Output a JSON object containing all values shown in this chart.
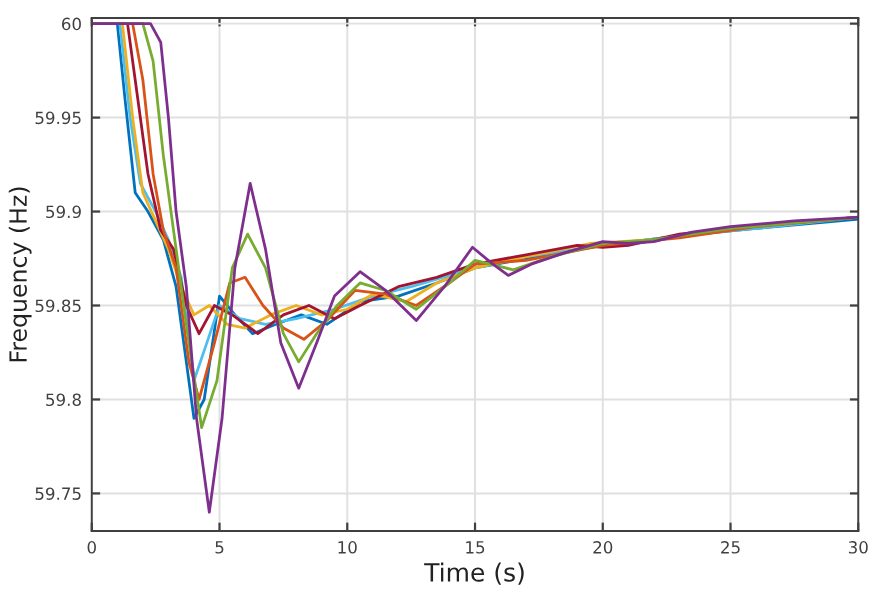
{
  "chart_data": {
    "type": "line",
    "xlabel": "Time (s)",
    "ylabel": "Frequency (Hz)",
    "xlim": [
      0,
      30
    ],
    "ylim": [
      59.73,
      60.003
    ],
    "xticks": [
      0,
      5,
      10,
      15,
      20,
      25,
      30
    ],
    "yticks": [
      59.75,
      59.8,
      59.85,
      59.9,
      59.95,
      60
    ],
    "grid": true,
    "line_style": "solid",
    "marker": "none",
    "series": [
      {
        "color": "#0072bd",
        "x": [
          0,
          1.0,
          1.3,
          1.7,
          2.2,
          2.8,
          3.3,
          3.7,
          4.0,
          4.4,
          5.0,
          5.6,
          6.3,
          7.2,
          8.2,
          9.2,
          10.5,
          12,
          13.5,
          15,
          17,
          20,
          23,
          26,
          30
        ],
        "values": [
          60,
          60,
          59.96,
          59.91,
          59.9,
          59.885,
          59.86,
          59.82,
          59.79,
          59.8,
          59.855,
          59.845,
          59.835,
          59.84,
          59.845,
          59.84,
          59.852,
          59.855,
          59.862,
          59.87,
          59.875,
          59.882,
          59.887,
          59.891,
          59.896
        ]
      },
      {
        "color": "#4dbeee",
        "x": [
          0,
          1.1,
          1.5,
          1.9,
          2.5,
          3.0,
          3.5,
          4.0,
          4.5,
          5,
          5.8,
          6.8,
          8,
          9.5,
          11,
          12.5,
          14,
          15,
          17,
          20,
          23,
          26,
          30
        ],
        "values": [
          60,
          60,
          59.95,
          59.915,
          59.9,
          59.885,
          59.865,
          59.81,
          59.83,
          59.85,
          59.843,
          59.84,
          59.843,
          59.848,
          59.855,
          59.86,
          59.866,
          59.87,
          59.876,
          59.882,
          59.887,
          59.891,
          59.897
        ]
      },
      {
        "color": "#edb120",
        "x": [
          0,
          1.2,
          1.6,
          2.0,
          2.5,
          3.0,
          3.5,
          4.0,
          4.6,
          5.3,
          6.0,
          7.0,
          8.0,
          9.0,
          10,
          11,
          12.3,
          13.5,
          15,
          17,
          19.5,
          22,
          25,
          30
        ],
        "values": [
          60,
          60,
          59.95,
          59.91,
          59.895,
          59.88,
          59.86,
          59.845,
          59.85,
          59.84,
          59.838,
          59.845,
          59.85,
          59.845,
          59.848,
          59.856,
          59.852,
          59.862,
          59.87,
          59.876,
          59.883,
          59.885,
          59.891,
          59.897
        ]
      },
      {
        "color": "#a2142f",
        "x": [
          0,
          1.4,
          1.8,
          2.2,
          2.7,
          3.2,
          3.7,
          4.2,
          4.8,
          5.5,
          6.5,
          7.5,
          8.5,
          9.5,
          10.5,
          12,
          13.5,
          15,
          17,
          19,
          20,
          21,
          23,
          25,
          30
        ],
        "values": [
          60,
          60,
          59.96,
          59.92,
          59.89,
          59.88,
          59.85,
          59.835,
          59.85,
          59.845,
          59.835,
          59.845,
          59.85,
          59.843,
          59.85,
          59.86,
          59.865,
          59.872,
          59.877,
          59.882,
          59.881,
          59.882,
          59.888,
          59.891,
          59.897
        ]
      },
      {
        "color": "#d95319",
        "x": [
          0,
          1.6,
          2.0,
          2.4,
          2.8,
          3.3,
          3.8,
          4.2,
          4.8,
          5.4,
          6.0,
          6.7,
          7.5,
          8.3,
          9.2,
          10.3,
          11.5,
          12.7,
          14,
          15,
          17,
          20,
          23,
          26,
          30
        ],
        "values": [
          60,
          60,
          59.97,
          59.92,
          59.89,
          59.87,
          59.82,
          59.8,
          59.83,
          59.862,
          59.865,
          59.85,
          59.838,
          59.832,
          59.842,
          59.858,
          59.856,
          59.85,
          59.862,
          59.872,
          59.874,
          59.882,
          59.886,
          59.892,
          59.897
        ]
      },
      {
        "color": "#77ac30",
        "x": [
          0,
          2.0,
          2.4,
          2.8,
          3.2,
          3.7,
          4.3,
          4.9,
          5.5,
          6.1,
          6.8,
          7.5,
          8.1,
          8.8,
          9.6,
          10.5,
          11.5,
          12.7,
          14,
          15,
          16.5,
          18,
          20,
          22,
          25,
          30
        ],
        "values": [
          60,
          60,
          59.98,
          59.93,
          59.89,
          59.84,
          59.785,
          59.81,
          59.87,
          59.888,
          59.87,
          59.835,
          59.82,
          59.835,
          59.85,
          59.862,
          59.858,
          59.848,
          59.862,
          59.874,
          59.869,
          59.876,
          59.883,
          59.885,
          59.891,
          59.897
        ]
      },
      {
        "color": "#7e2f8e",
        "x": [
          0,
          2.3,
          2.7,
          3.0,
          3.3,
          3.7,
          4.1,
          4.6,
          5.1,
          5.6,
          6.2,
          6.8,
          7.4,
          8.1,
          8.8,
          9.5,
          10.5,
          11.5,
          12.7,
          13.8,
          14.9,
          15.7,
          16.3,
          17.2,
          18.5,
          20,
          21,
          22,
          23.5,
          25,
          27.5,
          30
        ],
        "values": [
          60,
          60,
          59.99,
          59.95,
          59.9,
          59.86,
          59.79,
          59.74,
          59.79,
          59.87,
          59.915,
          59.88,
          59.83,
          59.806,
          59.83,
          59.855,
          59.868,
          59.858,
          59.842,
          59.86,
          59.881,
          59.872,
          59.866,
          59.872,
          59.878,
          59.884,
          59.883,
          59.884,
          59.889,
          59.892,
          59.895,
          59.897
        ]
      }
    ]
  }
}
